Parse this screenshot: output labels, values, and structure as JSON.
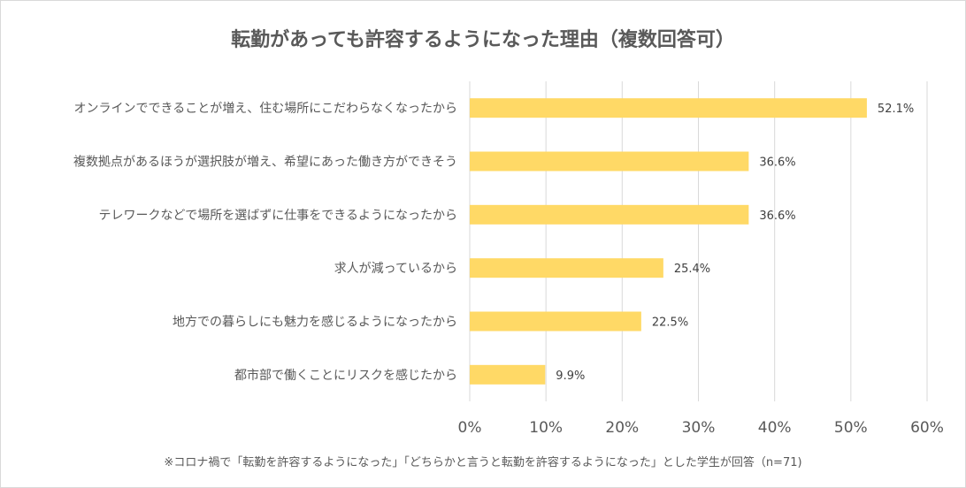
{
  "chart_data": {
    "type": "bar",
    "orientation": "horizontal",
    "title": "転勤があっても許容するようになった理由（複数回答可）",
    "note": "※コロナ禍で「転勤を許容するようになった」「どちらかと言うと転勤を許容するようになった」とした学生が回答（n=71)",
    "categories": [
      "オンラインでできることが増え、住む場所にこだわらなくなったから",
      "複数拠点があるほうが選択肢が増え、希望にあった働き方ができそう",
      "テレワークなどで場所を選ばずに仕事をできるようになったから",
      "求人が減っているから",
      "地方での暮らしにも魅力を感じるようになったから",
      "都市部で働くことにリスクを感じたから"
    ],
    "values": [
      52.1,
      36.6,
      36.6,
      25.4,
      22.5,
      9.9
    ],
    "data_labels": [
      "52.1%",
      "36.6%",
      "36.6%",
      "25.4%",
      "22.5%",
      "9.9%"
    ],
    "xticks": [
      "0%",
      "10%",
      "20%",
      "30%",
      "40%",
      "50%",
      "60%"
    ],
    "xlim": [
      0,
      60
    ],
    "grid": true,
    "bar_color": "#FFD966"
  }
}
